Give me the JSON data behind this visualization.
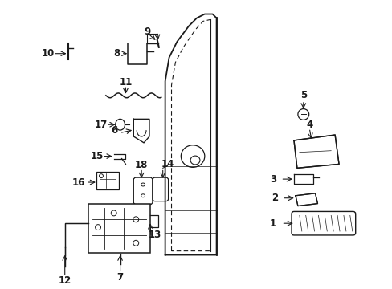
{
  "bg_color": "#ffffff",
  "line_color": "#1a1a1a",
  "fig_width": 4.89,
  "fig_height": 3.6,
  "dpi": 100,
  "label_fontsize": 8.5
}
